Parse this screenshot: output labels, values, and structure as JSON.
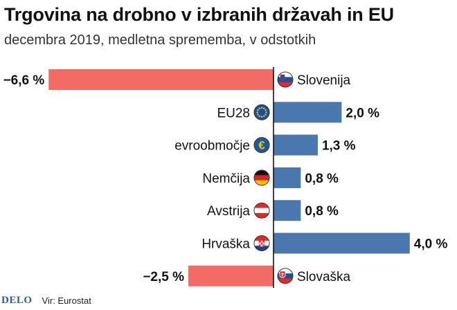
{
  "chart_data": {
    "type": "bar",
    "orientation": "horizontal",
    "title": "Trgovina na drobno v izbranih državah in EU",
    "subtitle": "decembra 2019, medletna sprememba, v odstotkih",
    "categories": [
      "Slovenija",
      "EU28",
      "evroobmočje",
      "Nemčija",
      "Avstrija",
      "Hrvaška",
      "Slovaška"
    ],
    "values": [
      -6.6,
      2.0,
      1.3,
      0.8,
      0.8,
      4.0,
      -2.5
    ],
    "value_labels": [
      "−6,6 %",
      "2,0 %",
      "1,3 %",
      "0,8 %",
      "0,8 %",
      "4,0 %",
      "−2,5 %"
    ],
    "icons": [
      "flag-slovenia",
      "flag-eu",
      "euro-symbol",
      "flag-germany",
      "flag-austria",
      "flag-croatia",
      "flag-slovakia"
    ],
    "xlim": [
      -6.6,
      4.0
    ],
    "colors": {
      "positive": "#4a78ae",
      "negative": "#f26b65"
    },
    "xlabel": "",
    "ylabel": ""
  },
  "footer": {
    "logo": "DELO",
    "source": "Vir: Eurostat"
  }
}
